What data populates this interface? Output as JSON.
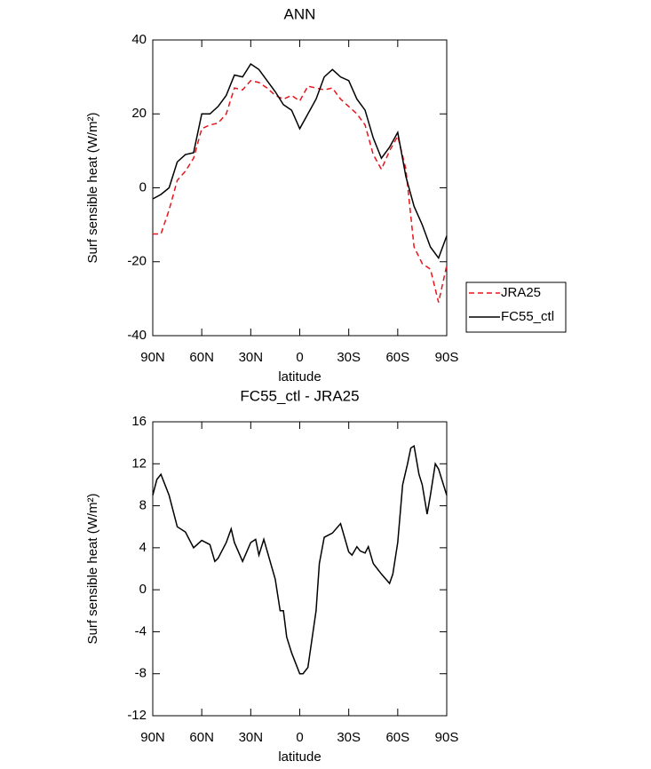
{
  "chart_data": [
    {
      "type": "line",
      "title": "ANN",
      "x_label": "latitude",
      "y_label": "Surf sensible heat (W/m²)",
      "xlim": [
        90,
        -90
      ],
      "xticks": [
        {
          "value": 90,
          "label": "90N"
        },
        {
          "value": 60,
          "label": "60N"
        },
        {
          "value": 30,
          "label": "30N"
        },
        0,
        {
          "value": -30,
          "label": "30S"
        },
        {
          "value": -60,
          "label": "60S"
        },
        {
          "value": -90,
          "label": "90S"
        }
      ],
      "ylim": [
        -40,
        40
      ],
      "yticks": [
        -40,
        -20,
        0,
        20,
        40
      ],
      "legend": "right",
      "x": [
        90,
        85,
        80,
        75,
        70,
        65,
        60,
        55,
        50,
        45,
        40,
        35,
        30,
        25,
        20,
        15,
        10,
        5,
        0,
        -5,
        -10,
        -15,
        -20,
        -25,
        -30,
        -35,
        -40,
        -45,
        -50,
        -55,
        -60,
        -65,
        -70,
        -75,
        -80,
        -85,
        -90
      ],
      "series": [
        {
          "name": "JRA25",
          "color": "#e8141b",
          "dash": true,
          "values": [
            -12.5,
            -12.5,
            -6,
            2,
            4.5,
            8,
            16,
            17,
            17.5,
            20,
            27,
            26.5,
            29,
            28.5,
            27,
            25,
            24,
            25,
            23.5,
            27.5,
            27,
            26.5,
            27,
            24,
            22,
            20,
            17,
            9,
            5,
            10,
            14,
            5,
            -16,
            -20.5,
            -22,
            -31,
            -21
          ]
        },
        {
          "name": "FC55_ctl",
          "color": "#000000",
          "dash": false,
          "values": [
            -3,
            -1.8,
            0,
            7,
            9,
            9.5,
            20,
            20,
            22,
            25,
            30.5,
            30,
            33.5,
            32,
            29,
            26,
            22.5,
            21,
            16,
            20,
            24,
            30,
            32,
            30,
            29,
            24,
            21,
            13.5,
            8,
            11,
            15,
            3,
            -5,
            -10,
            -16,
            -19,
            -13
          ]
        }
      ]
    },
    {
      "type": "line",
      "title": "FC55_ctl - JRA25",
      "x_label": "latitude",
      "y_label": "Surf sensible heat (W/m²)",
      "xlim": [
        90,
        -90
      ],
      "xticks": [
        {
          "value": 90,
          "label": "90N"
        },
        {
          "value": 60,
          "label": "60N"
        },
        {
          "value": 30,
          "label": "30N"
        },
        0,
        {
          "value": -30,
          "label": "30S"
        },
        {
          "value": -60,
          "label": "60S"
        },
        {
          "value": -90,
          "label": "90S"
        }
      ],
      "ylim": [
        -12,
        16
      ],
      "yticks": [
        -12,
        -8,
        -4,
        0,
        4,
        8,
        12,
        16
      ],
      "x": [
        90,
        87.5,
        85,
        80,
        75,
        70,
        65,
        60,
        55,
        52,
        50,
        45,
        42,
        40,
        35,
        30,
        27,
        25,
        22,
        15,
        12,
        10,
        8,
        5,
        0,
        -2,
        -5,
        -10,
        -12,
        -15,
        -20,
        -25,
        -30,
        -32,
        -35,
        -37,
        -40,
        -42,
        -45,
        -50,
        -55,
        -57,
        -60,
        -63,
        -66,
        -68,
        -70,
        -73,
        -75,
        -78,
        -80,
        -83,
        -85,
        -87,
        -90
      ],
      "series": [
        {
          "name": "FC55_ctl - JRA25",
          "color": "#000000",
          "dash": false,
          "values": [
            9,
            10.5,
            11,
            9,
            6,
            5.5,
            4,
            4.7,
            4.3,
            2.7,
            3,
            4.5,
            5.8,
            4.5,
            2.7,
            4.5,
            4.8,
            3.3,
            4.8,
            1,
            -2,
            -2,
            -4.5,
            -6,
            -8,
            -8,
            -7.4,
            -2,
            2.5,
            5,
            5.4,
            6.3,
            3.6,
            3.3,
            4.1,
            3.7,
            3.5,
            4.1,
            2.5,
            1.5,
            0.6,
            1.5,
            4.5,
            10,
            12,
            13.5,
            13.7,
            11,
            10,
            7.2,
            9,
            12,
            11.5,
            10.5,
            9
          ]
        }
      ]
    }
  ]
}
